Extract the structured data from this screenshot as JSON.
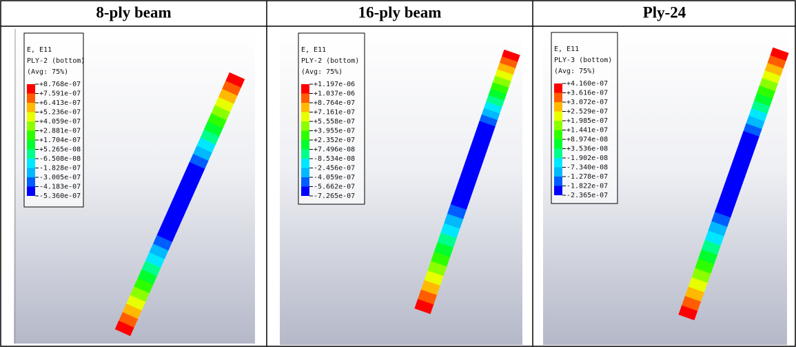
{
  "headers": [
    "8-ply beam",
    "16-ply beam",
    "Ply-24"
  ],
  "panels": [
    {
      "variable": "E, E11",
      "section": "PLY-2 (bottom)",
      "averaging": "(Avg: 75%)",
      "legend": [
        "+8.768e-07",
        "+7.591e-07",
        "+6.413e-07",
        "+5.236e-07",
        "+4.059e-07",
        "+2.881e-07",
        "+1.704e-07",
        "+5.265e-08",
        "-6.508e-08",
        "-1.828e-07",
        "-3.005e-07",
        "-4.183e-07",
        "-5.360e-07"
      ]
    },
    {
      "variable": "E, E11",
      "section": "PLY-2 (bottom)",
      "averaging": "(Avg: 75%)",
      "legend": [
        "+1.197e-06",
        "+1.037e-06",
        "+8.764e-07",
        "+7.161e-07",
        "+5.558e-07",
        "+3.955e-07",
        "+2.352e-07",
        "+7.496e-08",
        "-8.534e-08",
        "-2.456e-07",
        "-4.059e-07",
        "-5.662e-07",
        "-7.265e-07"
      ]
    },
    {
      "variable": "E, E11",
      "section": "PLY-3 (bottom)",
      "averaging": "(Avg: 75%)",
      "legend": [
        "+4.160e-07",
        "+3.616e-07",
        "+3.072e-07",
        "+2.529e-07",
        "+1.985e-07",
        "+1.441e-07",
        "+8.974e-08",
        "+3.536e-08",
        "-1.902e-08",
        "-7.340e-08",
        "-1.278e-07",
        "-1.822e-07",
        "-2.365e-07"
      ]
    }
  ]
}
